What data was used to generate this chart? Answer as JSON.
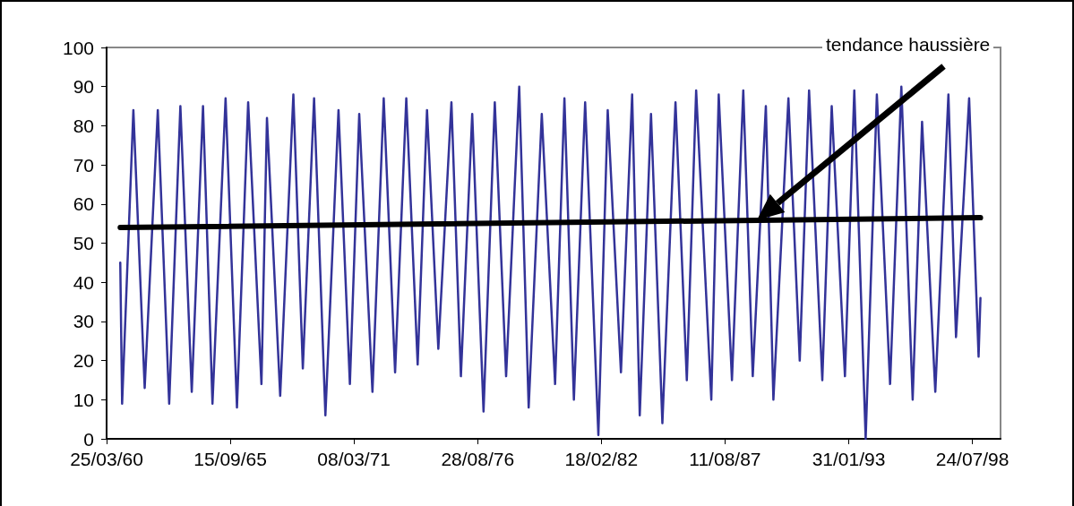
{
  "chart_data": {
    "type": "line",
    "series": [
      {
        "color": "#333399",
        "x": [
          "1960-11",
          "1960-12",
          "1961-06",
          "1961-12",
          "1962-07",
          "1963-01",
          "1963-07",
          "1964-01",
          "1964-07",
          "1964-12",
          "1965-07",
          "1966-01",
          "1966-07",
          "1967-02",
          "1967-05",
          "1967-12",
          "1968-07",
          "1968-12",
          "1969-06",
          "1969-12",
          "1970-07",
          "1971-01",
          "1971-06",
          "1972-01",
          "1972-07",
          "1973-01",
          "1973-07",
          "1974-01",
          "1974-06",
          "1974-12",
          "1975-07",
          "1975-12",
          "1976-06",
          "1976-12",
          "1977-06",
          "1977-12",
          "1978-07",
          "1978-12",
          "1979-07",
          "1980-02",
          "1980-07",
          "1980-12",
          "1981-06",
          "1982-01",
          "1982-06",
          "1983-01",
          "1983-07",
          "1983-11",
          "1984-05",
          "1984-11",
          "1985-06",
          "1985-12",
          "1986-05",
          "1987-01",
          "1987-05",
          "1987-12",
          "1988-06",
          "1988-11",
          "1989-06",
          "1989-10",
          "1990-06",
          "1990-12",
          "1991-05",
          "1991-12",
          "1992-05",
          "1992-12",
          "1993-05",
          "1993-11",
          "1994-05",
          "1994-12",
          "1995-06",
          "1995-12",
          "1996-05",
          "1996-12",
          "1997-07",
          "1997-11",
          "1998-06",
          "1998-11",
          "1998-12"
        ],
        "values": [
          45,
          9,
          84,
          13,
          84,
          9,
          85,
          12,
          85,
          9,
          87,
          8,
          86,
          14,
          82,
          11,
          88,
          18,
          87,
          6,
          84,
          14,
          83,
          12,
          87,
          17,
          87,
          19,
          84,
          23,
          86,
          16,
          83,
          7,
          86,
          16,
          90,
          8,
          83,
          14,
          87,
          10,
          86,
          1,
          84,
          17,
          88,
          6,
          83,
          4,
          86,
          15,
          89,
          10,
          88,
          15,
          89,
          16,
          85,
          10,
          87,
          20,
          89,
          15,
          85,
          16,
          89,
          0,
          88,
          14,
          90,
          10,
          81,
          12,
          88,
          26,
          87,
          21,
          36
        ]
      },
      {
        "type": "line",
        "color": "#000000",
        "x": [
          "1960-11",
          "1998-12"
        ],
        "values": [
          54,
          56.5
        ]
      }
    ],
    "xlim": [
      "1960-03-25",
      "1999-10-22"
    ],
    "xticks": [
      {
        "value": "1960-03-25",
        "label": "25/03/60"
      },
      {
        "value": "1965-09-15",
        "label": "15/09/65"
      },
      {
        "value": "1971-03-08",
        "label": "08/03/71"
      },
      {
        "value": "1976-08-28",
        "label": "28/08/76"
      },
      {
        "value": "1982-02-18",
        "label": "18/02/82"
      },
      {
        "value": "1987-08-11",
        "label": "11/08/87"
      },
      {
        "value": "1993-01-31",
        "label": "31/01/93"
      },
      {
        "value": "1998-07-24",
        "label": "24/07/98"
      }
    ],
    "ylim": [
      0,
      100
    ],
    "yticks": [
      0,
      10,
      20,
      30,
      40,
      50,
      60,
      70,
      80,
      90,
      100
    ],
    "grid": false,
    "marker": "none",
    "annotations": [
      "tendance haussière"
    ]
  }
}
